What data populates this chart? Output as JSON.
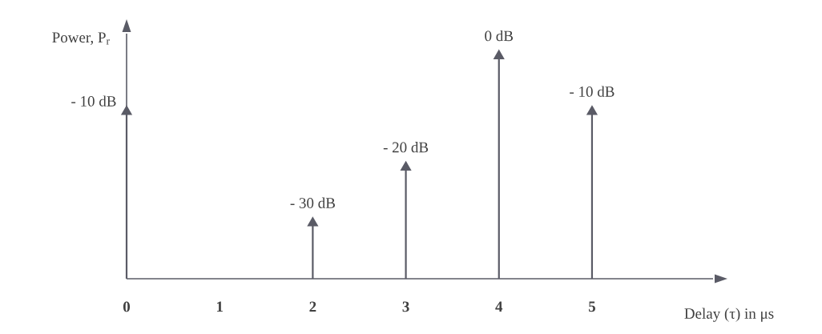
{
  "chart_data": {
    "type": "lollipop",
    "xlabel": "Delay (τ) in μs",
    "ylabel": "Power, P$_{r}$",
    "categories": [
      "0",
      "1",
      "2",
      "3",
      "4",
      "5"
    ],
    "values": [
      -10,
      null,
      -30,
      -20,
      0,
      -10
    ],
    "value_labels": [
      "- 10 dB",
      null,
      "- 30 dB",
      "- 20 dB",
      "0 dB",
      "- 10 dB"
    ],
    "ylim": [
      -40,
      4
    ],
    "color": "#5a5b66",
    "marker": "triangle"
  }
}
